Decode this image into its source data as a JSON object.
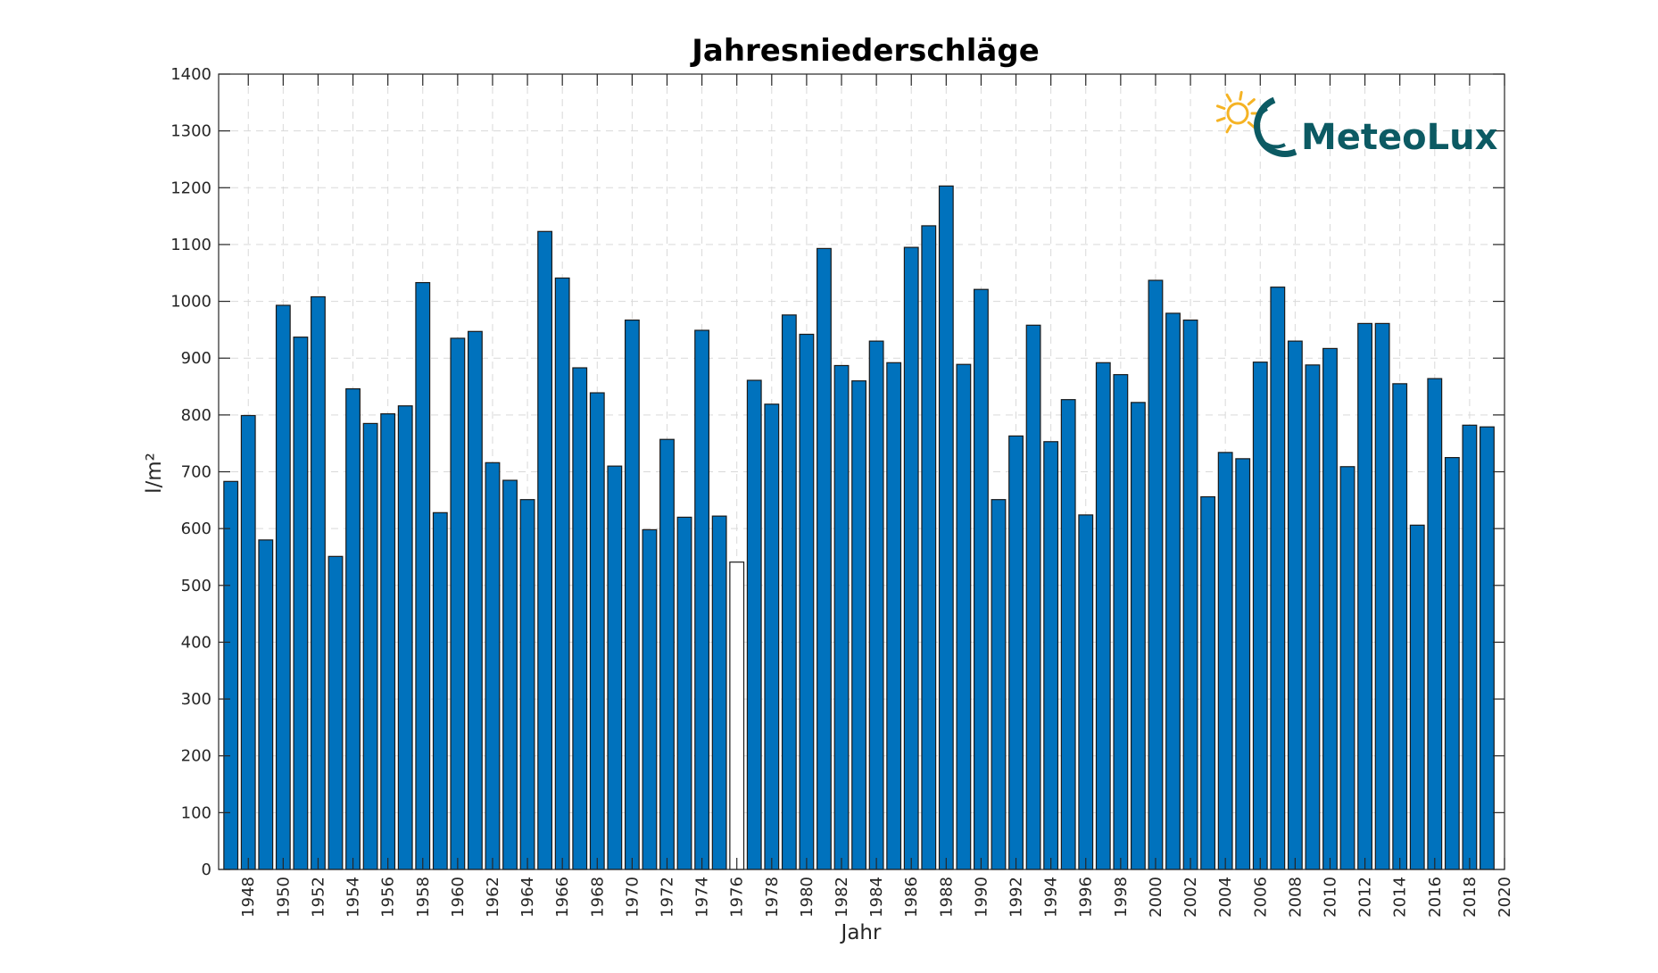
{
  "chart_data": {
    "type": "bar",
    "title": "Jahresniederschläge",
    "xlabel": "Jahr",
    "ylabel": "l/m²",
    "ylim": [
      0,
      1400
    ],
    "yticks": [
      0,
      100,
      200,
      300,
      400,
      500,
      600,
      700,
      800,
      900,
      1000,
      1100,
      1200,
      1300,
      1400
    ],
    "xlim": [
      1946.3,
      2020
    ],
    "xticks": [
      1948,
      1950,
      1952,
      1954,
      1956,
      1958,
      1960,
      1962,
      1964,
      1966,
      1968,
      1970,
      1972,
      1974,
      1976,
      1978,
      1980,
      1982,
      1984,
      1986,
      1988,
      1990,
      1992,
      1994,
      1996,
      1998,
      2000,
      2002,
      2004,
      2006,
      2008,
      2010,
      2012,
      2014,
      2016,
      2018,
      2020
    ],
    "grid": true,
    "bar_color": "#0072bd",
    "categories": [
      1947,
      1948,
      1949,
      1950,
      1951,
      1952,
      1953,
      1954,
      1955,
      1956,
      1957,
      1958,
      1959,
      1960,
      1961,
      1962,
      1963,
      1964,
      1965,
      1966,
      1967,
      1968,
      1969,
      1970,
      1971,
      1972,
      1973,
      1974,
      1975,
      1976,
      1977,
      1978,
      1979,
      1980,
      1981,
      1982,
      1983,
      1984,
      1985,
      1986,
      1987,
      1988,
      1989,
      1990,
      1991,
      1992,
      1993,
      1994,
      1995,
      1996,
      1997,
      1998,
      1999,
      2000,
      2001,
      2002,
      2003,
      2004,
      2005,
      2006,
      2007,
      2008,
      2009,
      2010,
      2011,
      2012,
      2013,
      2014,
      2015,
      2016,
      2017,
      2018,
      2019
    ],
    "values": [
      683,
      799,
      580,
      993,
      937,
      1008,
      551,
      846,
      785,
      802,
      816,
      1033,
      628,
      935,
      947,
      716,
      685,
      651,
      1123,
      1041,
      883,
      839,
      710,
      967,
      598,
      757,
      620,
      949,
      622,
      541,
      861,
      819,
      976,
      942,
      1093,
      887,
      860,
      930,
      892,
      1095,
      1133,
      1203,
      889,
      1021,
      651,
      763,
      958,
      753,
      827,
      624,
      892,
      871,
      822,
      1037,
      979,
      967,
      656,
      734,
      723,
      893,
      1025,
      930,
      888,
      917,
      709,
      961,
      961,
      855,
      606,
      864,
      725,
      782,
      779
    ],
    "highlights": [
      {
        "year": 1976,
        "type": "minimum",
        "edge_color": "#f0a030",
        "fill": "#ffffff"
      },
      {
        "year": 1988,
        "type": "maximum",
        "edge_color": "#c8207a",
        "fill": "#0072bd"
      }
    ]
  },
  "logo": {
    "text": "MeteoLux",
    "text_color": "#0c5a63",
    "ring_color": "#0c5a63",
    "sun_color": "#f5b324",
    "icon": "sun-icon"
  }
}
